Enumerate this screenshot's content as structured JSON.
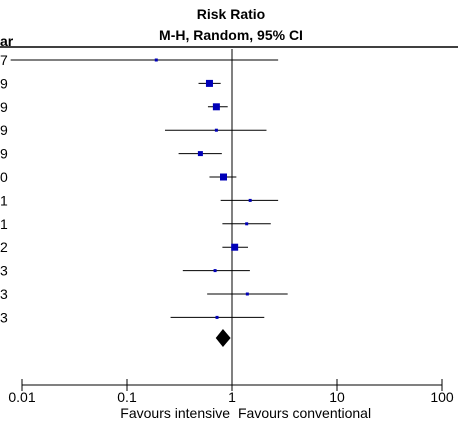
{
  "header": {
    "col_left": "ar",
    "title_line1": "Risk Ratio",
    "title_line2": "M-H, Random, 95% CI"
  },
  "chart_data": {
    "type": "forest",
    "x_scale": "log",
    "xlim": [
      0.005,
      100
    ],
    "ticks": [
      {
        "value": 0.01,
        "label": "0.01"
      },
      {
        "value": 0.1,
        "label": "0.1"
      },
      {
        "value": 1,
        "label": "1"
      },
      {
        "value": 10,
        "label": "10"
      },
      {
        "value": 100,
        "label": "100"
      }
    ],
    "favours_left": "Favours intensive",
    "favours_right": "Favours conventional",
    "studies": [
      {
        "year_suffix": "7",
        "rr": 0.19,
        "ci": [
          0.0078,
          2.75
        ],
        "weight": "small"
      },
      {
        "year_suffix": "9",
        "rr": 0.61,
        "ci": [
          0.48,
          0.78
        ],
        "weight": "large"
      },
      {
        "year_suffix": "9",
        "rr": 0.71,
        "ci": [
          0.59,
          0.91
        ],
        "weight": "large"
      },
      {
        "year_suffix": "9",
        "rr": 0.71,
        "ci": [
          0.23,
          2.13
        ],
        "weight": "small"
      },
      {
        "year_suffix": "9",
        "rr": 0.5,
        "ci": [
          0.31,
          0.8
        ],
        "weight": "medium"
      },
      {
        "year_suffix": "0",
        "rr": 0.83,
        "ci": [
          0.61,
          1.1
        ],
        "weight": "large"
      },
      {
        "year_suffix": "1",
        "rr": 1.49,
        "ci": [
          0.78,
          2.75
        ],
        "weight": "small"
      },
      {
        "year_suffix": "1",
        "rr": 1.38,
        "ci": [
          0.81,
          2.34
        ],
        "weight": "small"
      },
      {
        "year_suffix": "2",
        "rr": 1.06,
        "ci": [
          0.81,
          1.42
        ],
        "weight": "large"
      },
      {
        "year_suffix": "3",
        "rr": 0.69,
        "ci": [
          0.34,
          1.48
        ],
        "weight": "small"
      },
      {
        "year_suffix": "3",
        "rr": 1.4,
        "ci": [
          0.58,
          3.39
        ],
        "weight": "small"
      },
      {
        "year_suffix": "3",
        "rr": 0.72,
        "ci": [
          0.26,
          2.03
        ],
        "weight": "small"
      }
    ],
    "pooled": {
      "rr": 0.82,
      "ci": [
        0.7,
        0.97
      ]
    }
  }
}
